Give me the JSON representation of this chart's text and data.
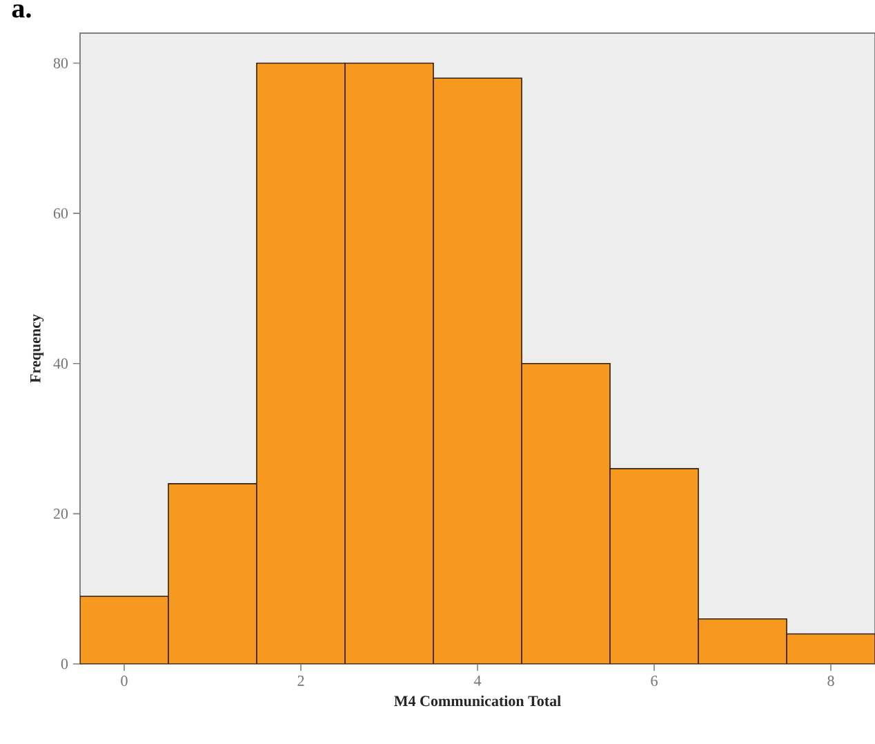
{
  "chart_data": {
    "type": "histogram",
    "title": "a.",
    "xlabel": "M4 Communication Total",
    "ylabel": "Frequency",
    "bins": [
      -0.5,
      0.5,
      1.5,
      2.5,
      3.5,
      4.5,
      5.5,
      6.5,
      7.5,
      8.5
    ],
    "values": [
      9,
      24,
      80,
      80,
      78,
      40,
      26,
      6,
      4
    ],
    "color": "#f7991e",
    "xlim": [
      -0.5,
      8.5
    ],
    "ylim": [
      0,
      84
    ],
    "xticks": [
      0,
      2,
      4,
      6,
      8
    ],
    "yticks": [
      0,
      20,
      40,
      60,
      80
    ],
    "grid": false
  }
}
